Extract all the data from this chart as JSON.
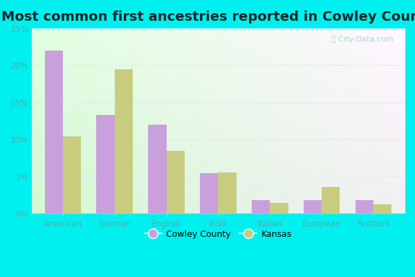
{
  "title": "Most common first ancestries reported in Cowley County",
  "categories": [
    "American",
    "German",
    "English",
    "Irish",
    "Italian",
    "European",
    "Scottish"
  ],
  "cowley_values": [
    22.0,
    13.3,
    12.0,
    5.4,
    1.8,
    1.8,
    1.8
  ],
  "kansas_values": [
    10.4,
    19.5,
    8.4,
    5.5,
    1.4,
    3.5,
    1.2
  ],
  "cowley_color": "#c9a0dc",
  "kansas_color": "#c8cc7e",
  "ylim": [
    0,
    25
  ],
  "yticks": [
    0,
    5,
    10,
    15,
    20,
    25
  ],
  "ytick_labels": [
    "0%",
    "5%",
    "10%",
    "15%",
    "20%",
    "25%"
  ],
  "title_fontsize": 14,
  "background_color": "#00f0f0",
  "watermark": "City-Data.com",
  "legend_cowley": "Cowley County",
  "legend_kansas": "Kansas",
  "bar_width": 0.35,
  "grid_color": "#ddeeee",
  "tick_color": "#55aaaa"
}
